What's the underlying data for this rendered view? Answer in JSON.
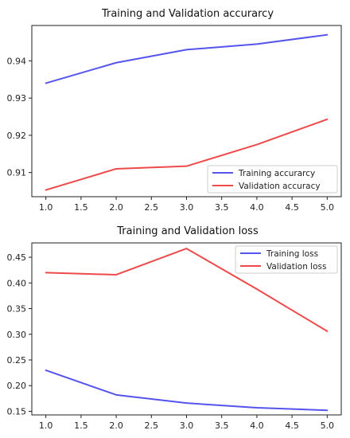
{
  "colors": {
    "training": "#5555ee",
    "validation": "#ee4a4a"
  },
  "chart_data": [
    {
      "type": "line",
      "title": "Training and Validation accurarcy",
      "x": [
        1.0,
        2.0,
        3.0,
        4.0,
        5.0
      ],
      "series": [
        {
          "name": "Training accurarcy",
          "values": [
            0.934,
            0.9395,
            0.943,
            0.9445,
            0.947
          ]
        },
        {
          "name": "Validation accuracy",
          "values": [
            0.9053,
            0.911,
            0.9117,
            0.9175,
            0.9243
          ]
        }
      ],
      "xlim": [
        0.8,
        5.2
      ],
      "ylim": [
        0.9035,
        0.9495
      ],
      "xticks": [
        "1.0",
        "1.5",
        "2.0",
        "2.5",
        "3.0",
        "3.5",
        "4.0",
        "4.5",
        "5.0"
      ],
      "yticks": [
        "0.91",
        "0.92",
        "0.93",
        "0.94"
      ],
      "legend": "lower-right",
      "grid": false
    },
    {
      "type": "line",
      "title": "Training and Validation loss",
      "x": [
        1.0,
        2.0,
        3.0,
        4.0,
        5.0
      ],
      "series": [
        {
          "name": "Training loss",
          "values": [
            0.23,
            0.182,
            0.166,
            0.157,
            0.152
          ]
        },
        {
          "name": "Validation loss",
          "values": [
            0.42,
            0.416,
            0.467,
            0.388,
            0.306
          ]
        }
      ],
      "xlim": [
        0.8,
        5.2
      ],
      "ylim": [
        0.143,
        0.478
      ],
      "xticks": [
        "1.0",
        "1.5",
        "2.0",
        "2.5",
        "3.0",
        "3.5",
        "4.0",
        "4.5",
        "5.0"
      ],
      "yticks": [
        "0.15",
        "0.20",
        "0.25",
        "0.30",
        "0.35",
        "0.40",
        "0.45"
      ],
      "legend": "top-right",
      "grid": false
    }
  ]
}
